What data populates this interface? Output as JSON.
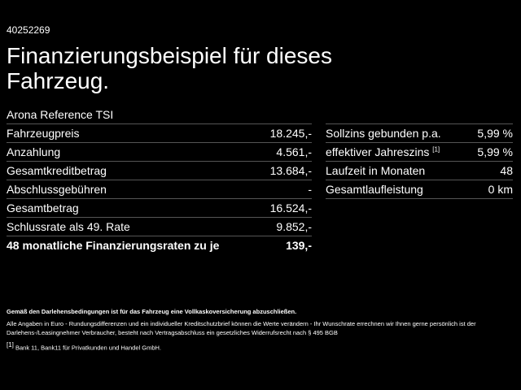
{
  "header": {
    "id": "40252269",
    "title": "Finanzierungsbeispiel für dieses Fahrzeug.",
    "model": "Arona Reference TSI"
  },
  "left_table": {
    "rows": [
      [
        "Fahrzeugpreis",
        "18.245,-"
      ],
      [
        "Anzahlung",
        "4.561,-"
      ],
      [
        "Gesamtkreditbetrag",
        "13.684,-"
      ],
      [
        "Abschlussgebühren",
        "-"
      ],
      [
        "Gesamtbetrag",
        "16.524,-"
      ],
      [
        "Schlussrate als 49. Rate",
        "9.852,-"
      ],
      [
        "48 monatliche Finanzierungsraten zu je",
        "139,-"
      ]
    ]
  },
  "right_table": {
    "rows": [
      [
        "Sollzins gebunden p.a.",
        "5,99 %"
      ],
      [
        "effektiver Jahreszins",
        "5,99 %"
      ],
      [
        "Laufzeit in Monaten",
        "48"
      ],
      [
        "Gesamtlaufleistung",
        "0 km"
      ]
    ],
    "footnote_ref": "[1]"
  },
  "footnotes": {
    "insurance": "Gemäß den Darlehensbedingungen ist für das Fahrzeug eine Vollkaskoversicherung abzuschließen.",
    "disclaimer": "Alle Angaben in Euro - Rundungsdifferenzen und ein individueller Kreditschutzbrief können die Werte verändern - Ihr Wunschrate errechnen wir Ihnen gerne persönlich ist der Darlehens-/Leasingnehmer Verbraucher, besteht nach Vertragsabschluss ein gesetzliches Widerrufsrecht nach § 495 BGB",
    "bank_ref": "[1]",
    "bank": "Bank 11, Bank11 für Privatkunden und Handel GmbH."
  }
}
